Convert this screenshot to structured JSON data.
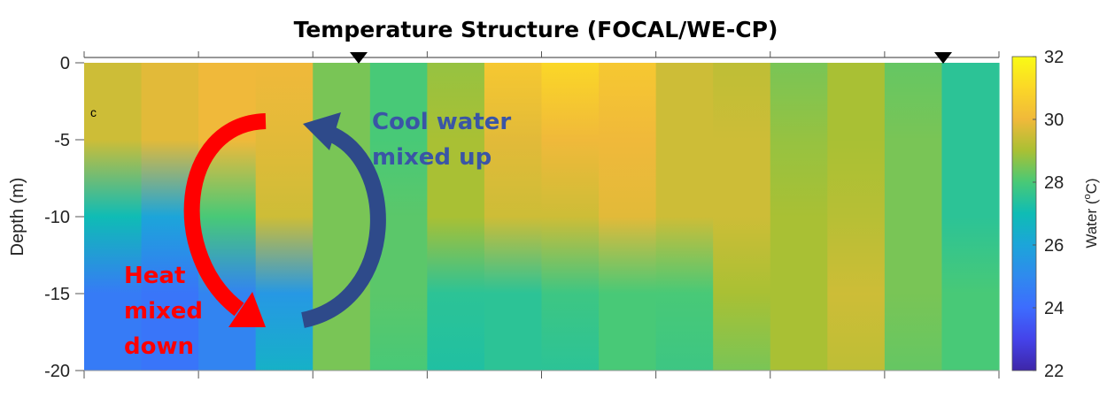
{
  "chart_data": {
    "type": "heatmap",
    "title": "Temperature Structure (FOCAL/WE-CP)",
    "panel_label": "c",
    "xlabel": "",
    "ylabel": "Depth (m)",
    "ylim": [
      -20,
      0
    ],
    "yticks": [
      0,
      -5,
      -10,
      -15,
      -20
    ],
    "ytick_labels": [
      "0",
      "-5",
      "-10",
      "-15",
      "-20"
    ],
    "x_tick_count": 9,
    "colorbar": {
      "label": "Water (",
      "label_sup": "o",
      "label_unit": "C)",
      "range": [
        22,
        32
      ],
      "ticks": [
        32,
        30,
        28,
        26,
        24,
        22
      ],
      "tick_labels": [
        "32",
        "30",
        "28",
        "26",
        "24",
        "22"
      ]
    },
    "depths": [
      0,
      -5,
      -10,
      -15,
      -20
    ],
    "columns": [
      [
        29.5,
        29.5,
        27.0,
        24.5,
        24.5
      ],
      [
        29.8,
        29.8,
        26.0,
        24.3,
        24.3
      ],
      [
        30.0,
        30.0,
        28.0,
        24.8,
        24.8
      ],
      [
        30.0,
        29.8,
        29.5,
        25.5,
        26.5
      ],
      [
        28.5,
        28.5,
        28.5,
        28.5,
        28.5
      ],
      [
        28.0,
        28.0,
        28.2,
        28.2,
        28.0
      ],
      [
        28.8,
        29.0,
        29.0,
        27.5,
        27.3
      ],
      [
        30.5,
        29.8,
        29.5,
        27.5,
        27.5
      ],
      [
        31.0,
        30.0,
        29.5,
        27.8,
        27.5
      ],
      [
        30.5,
        30.0,
        29.8,
        28.0,
        28.0
      ],
      [
        29.5,
        29.5,
        29.5,
        28.0,
        27.8
      ],
      [
        29.3,
        29.5,
        29.5,
        29.0,
        28.5
      ],
      [
        28.5,
        28.8,
        29.0,
        29.0,
        29.0
      ],
      [
        29.0,
        29.0,
        29.2,
        29.5,
        29.3
      ],
      [
        28.3,
        28.5,
        28.5,
        28.5,
        28.3
      ],
      [
        27.5,
        27.5,
        27.5,
        28.0,
        28.0
      ]
    ],
    "markers": [
      "triangle-down",
      "triangle-down"
    ],
    "annotations": {
      "heat": [
        "Heat",
        "mixed",
        "down"
      ],
      "cool": [
        "Cool water",
        "mixed up"
      ],
      "heat_color": "#ff0000",
      "cool_color": "#2e4a8a",
      "cool_text_color": "#3a55a6"
    }
  }
}
